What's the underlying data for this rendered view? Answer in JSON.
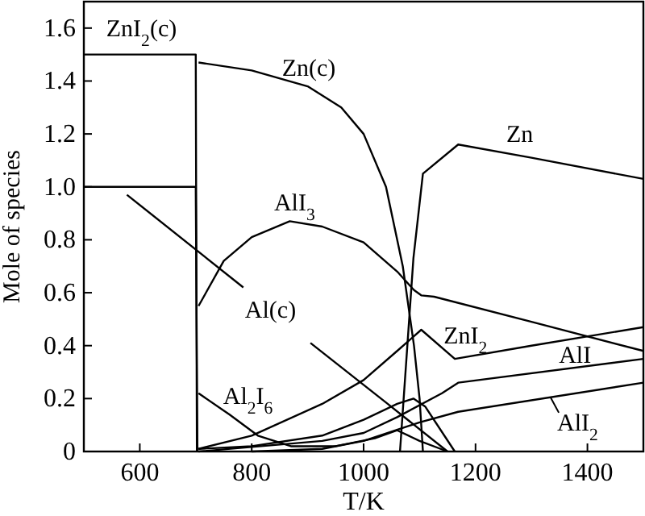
{
  "chart_data": {
    "type": "line",
    "xlabel": "T/K",
    "ylabel": "Mole of species",
    "xlim": [
      500,
      1500
    ],
    "ylim": [
      0,
      1.7
    ],
    "xticks": [
      600,
      800,
      1000,
      1200,
      1400
    ],
    "yticks": [
      0,
      0.2,
      0.4,
      0.6,
      0.8,
      {
        "value": 1,
        "label": "1.0"
      },
      1.2,
      1.4,
      1.6
    ],
    "grid": false,
    "marker": "none",
    "line_style": "solid",
    "series": [
      {
        "name": "ZnI$_{2}$(c)",
        "color": "#000000",
        "x": [
          500,
          700,
          702
        ],
        "values": [
          1.5,
          1.5,
          0
        ]
      },
      {
        "color": "#000000",
        "x": [
          500,
          700,
          703
        ],
        "values": [
          1,
          1,
          0
        ]
      },
      {
        "name": "Al(c)",
        "color": "#000000",
        "x": [
          577,
          785,
          845,
          905,
          1043,
          1150
        ],
        "values": [
          0.97,
          0.62,
          null,
          0.41,
          0.18,
          0
        ]
      },
      {
        "name": "Zn(c)",
        "color": "#000000",
        "x": [
          705,
          800,
          900,
          960,
          1000,
          1040,
          1070,
          1090,
          1100,
          1106
        ],
        "values": [
          1.47,
          1.44,
          1.38,
          1.3,
          1.2,
          1,
          0.7,
          0.4,
          0.2,
          0
        ]
      },
      {
        "name": "Zn",
        "color": "#000000",
        "x": [
          1065,
          1089,
          1106,
          1169,
          1300,
          1500
        ],
        "values": [
          0,
          0.73,
          1.05,
          1.16,
          1.11,
          1.03
        ]
      },
      {
        "name": "AlI$_{3}$",
        "color": "#000000",
        "x": [
          705,
          750,
          800,
          868,
          926,
          1000,
          1060,
          1090,
          1103,
          1126,
          1300,
          1500
        ],
        "values": [
          0.55,
          0.72,
          0.81,
          0.87,
          0.85,
          0.79,
          0.68,
          0.61,
          0.59,
          0.585,
          0.49,
          0.38
        ]
      },
      {
        "name": "ZnI$_{2}$",
        "color": "#000000",
        "x": [
          705,
          800,
          926,
          1000,
          1060,
          1103,
          1163,
          1300,
          1500
        ],
        "values": [
          0.01,
          0.06,
          0.18,
          0.27,
          0.38,
          0.46,
          0.35,
          0.4,
          0.47
        ]
      },
      {
        "name": "AlI",
        "color": "#000000",
        "x": [
          705,
          926,
          1000,
          1060,
          1140,
          1169,
          1500
        ],
        "values": [
          0,
          0.04,
          0.07,
          0.13,
          0.22,
          0.26,
          0.35
        ]
      },
      {
        "name": "AlI$_{2}$",
        "color": "#000000",
        "x": [
          800,
          926,
          1000,
          1100,
          1169,
          1500
        ],
        "values": [
          0,
          0.01,
          0.04,
          0.11,
          0.15,
          0.26
        ]
      },
      {
        "color": "#000000",
        "x": [
          705,
          800,
          926,
          1000,
          1060,
          1089,
          1110,
          1163
        ],
        "values": [
          0.01,
          0.02,
          0.06,
          0.12,
          0.18,
          0.2,
          0.17,
          0
        ]
      },
      {
        "name": "Al$_{2}$I$_{6}$",
        "color": "#000000",
        "x": [
          705,
          760,
          811,
          870,
          950,
          1020,
          1060,
          1100,
          1150
        ],
        "values": [
          0.22,
          0.14,
          0.06,
          0.02,
          0.02,
          0.05,
          0.08,
          0.04,
          0
        ]
      }
    ]
  }
}
